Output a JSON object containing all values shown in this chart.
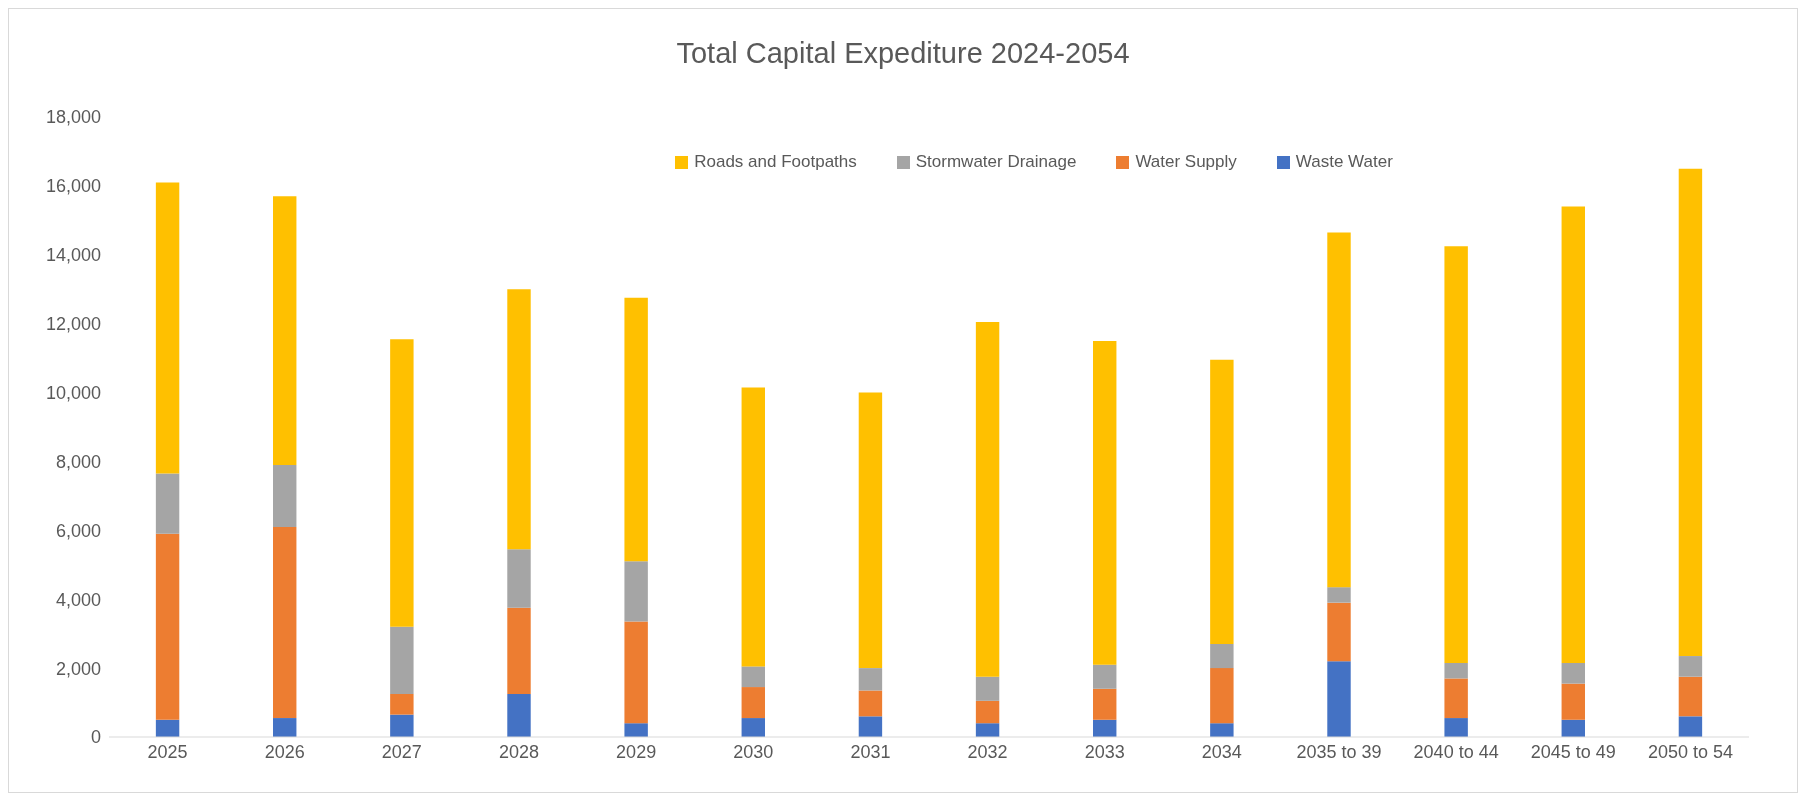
{
  "chart_data": {
    "type": "bar",
    "title": "Total Capital Expediture 2024-2054",
    "stacked": true,
    "legend": "top",
    "grid": false,
    "categories": [
      "2025",
      "2026",
      "2027",
      "2028",
      "2029",
      "2030",
      "2031",
      "2032",
      "2033",
      "2034",
      "2035 to 39",
      "2040 to 44",
      "2045 to 49",
      "2050 to 54"
    ],
    "ylim": [
      0,
      18000
    ],
    "yticks": [
      {
        "value": 0,
        "label": "0"
      },
      {
        "value": 2000,
        "label": "2,000"
      },
      {
        "value": 4000,
        "label": "4,000"
      },
      {
        "value": 6000,
        "label": "6,000"
      },
      {
        "value": 8000,
        "label": "8,000"
      },
      {
        "value": 10000,
        "label": "10,000"
      },
      {
        "value": 12000,
        "label": "12,000"
      },
      {
        "value": 14000,
        "label": "14,000"
      },
      {
        "value": 16000,
        "label": "16,000"
      },
      {
        "value": 18000,
        "label": "18,000"
      }
    ],
    "series": [
      {
        "name": "Waste Water",
        "color": "#4472c4",
        "values": [
          500,
          550,
          650,
          1250,
          400,
          550,
          600,
          400,
          500,
          400,
          2200,
          550,
          500,
          600
        ]
      },
      {
        "name": "Water Supply",
        "color": "#ed7d31",
        "values": [
          5400,
          5550,
          600,
          2500,
          2950,
          900,
          750,
          650,
          900,
          1600,
          1700,
          1150,
          1050,
          1150
        ]
      },
      {
        "name": "Stormwater Drainage",
        "color": "#a5a5a5",
        "values": [
          1750,
          1800,
          1950,
          1700,
          1750,
          600,
          650,
          700,
          700,
          700,
          450,
          450,
          600,
          600
        ]
      },
      {
        "name": "Roads and Footpaths",
        "color": "#ffc000",
        "values": [
          8450,
          7800,
          8350,
          7550,
          7650,
          8100,
          8000,
          10300,
          9400,
          8250,
          10300,
          12100,
          13250,
          14150
        ]
      }
    ]
  }
}
